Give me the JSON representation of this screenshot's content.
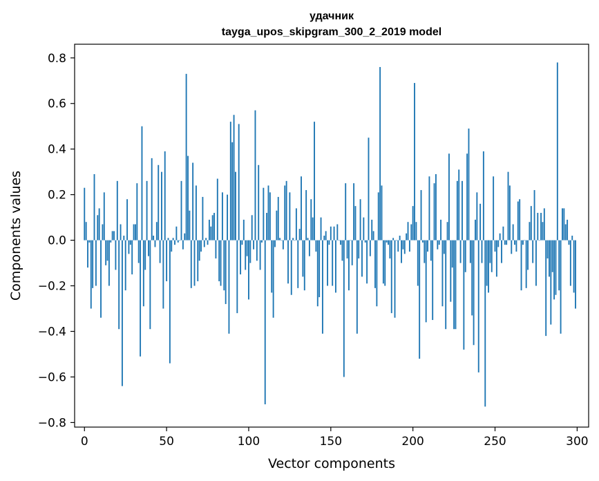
{
  "chart_data": {
    "type": "bar",
    "title": "удачник",
    "subtitle": "tayga_upos_skipgram_300_2_2019 model",
    "xlabel": "Vector components",
    "ylabel": "Components values",
    "xlim": [
      -6,
      307
    ],
    "ylim": [
      -0.82,
      0.86
    ],
    "xticks": [
      0,
      50,
      100,
      150,
      200,
      250,
      300
    ],
    "yticks": [
      -0.8,
      -0.6,
      -0.4,
      -0.2,
      0.0,
      0.2,
      0.4,
      0.6,
      0.8
    ],
    "ytick_labels": [
      "−0.8",
      "−0.6",
      "−0.4",
      "−0.2",
      "0.0",
      "0.2",
      "0.4",
      "0.6",
      "0.8"
    ],
    "xtick_labels": [
      "0",
      "50",
      "100",
      "150",
      "200",
      "250",
      "300"
    ],
    "bar_color": "#1f77b4",
    "grid": false,
    "values": [
      0.23,
      0.08,
      -0.12,
      -0.01,
      -0.3,
      -0.21,
      0.29,
      -0.2,
      0.11,
      0.14,
      -0.34,
      0.07,
      0.21,
      -0.11,
      -0.09,
      -0.2,
      -0.01,
      0.04,
      0.04,
      -0.13,
      0.26,
      -0.39,
      0.07,
      -0.64,
      0.02,
      -0.22,
      0.18,
      -0.06,
      -0.02,
      -0.15,
      0.07,
      0.07,
      0.25,
      -0.1,
      -0.51,
      0.5,
      -0.29,
      -0.13,
      0.26,
      -0.07,
      -0.39,
      0.36,
      0.02,
      -0.03,
      0.08,
      0.33,
      -0.1,
      0.3,
      -0.3,
      0.39,
      -0.18,
      0.01,
      -0.54,
      -0.05,
      0.01,
      -0.02,
      0.06,
      -0.01,
      0.0,
      0.26,
      -0.04,
      0.03,
      0.73,
      0.37,
      0.13,
      -0.21,
      0.34,
      -0.2,
      0.24,
      -0.18,
      -0.09,
      -0.05,
      0.19,
      -0.03,
      0.01,
      -0.02,
      0.09,
      0.06,
      0.11,
      0.12,
      -0.08,
      0.27,
      -0.18,
      -0.2,
      0.21,
      -0.22,
      -0.28,
      0.2,
      -0.41,
      0.52,
      0.43,
      0.55,
      0.3,
      -0.32,
      0.51,
      -0.15,
      -0.02,
      0.09,
      -0.13,
      -0.07,
      -0.26,
      -0.1,
      0.11,
      -0.04,
      0.57,
      -0.09,
      0.33,
      -0.13,
      -0.01,
      0.23,
      -0.72,
      0.12,
      0.24,
      0.21,
      -0.23,
      -0.34,
      -0.03,
      0.13,
      0.19,
      0.01,
      0.0,
      -0.04,
      0.24,
      0.26,
      -0.19,
      0.21,
      -0.24,
      0.01,
      0.0,
      0.14,
      -0.21,
      0.05,
      0.28,
      -0.16,
      -0.22,
      0.22,
      0.01,
      -0.07,
      0.18,
      0.1,
      0.52,
      -0.05,
      -0.29,
      -0.25,
      0.1,
      -0.41,
      0.02,
      0.04,
      -0.2,
      -0.02,
      0.06,
      -0.2,
      0.06,
      -0.23,
      0.07,
      0.0,
      -0.02,
      -0.09,
      -0.6,
      0.25,
      -0.08,
      -0.22,
      0.0,
      -0.11,
      0.25,
      0.15,
      -0.41,
      -0.08,
      0.18,
      -0.16,
      0.1,
      -0.01,
      -0.19,
      0.45,
      -0.07,
      0.09,
      0.04,
      -0.21,
      -0.29,
      0.21,
      0.76,
      0.24,
      -0.19,
      -0.2,
      -0.01,
      -0.02,
      -0.08,
      -0.32,
      0.01,
      -0.34,
      0.0,
      -0.05,
      0.02,
      -0.1,
      -0.04,
      -0.06,
      0.03,
      0.08,
      -0.05,
      0.07,
      0.15,
      0.69,
      0.08,
      -0.2,
      -0.52,
      0.22,
      -0.01,
      -0.1,
      -0.36,
      -0.05,
      0.28,
      -0.09,
      -0.35,
      0.25,
      0.29,
      -0.04,
      -0.02,
      0.09,
      -0.29,
      -0.06,
      -0.39,
      0.08,
      0.38,
      -0.27,
      -0.12,
      -0.39,
      -0.39,
      0.26,
      0.31,
      -0.1,
      0.26,
      -0.48,
      -0.14,
      0.38,
      0.49,
      -0.1,
      -0.33,
      -0.46,
      0.09,
      0.21,
      -0.58,
      0.16,
      -0.1,
      0.39,
      -0.73,
      -0.2,
      -0.23,
      -0.1,
      -0.14,
      0.28,
      -0.05,
      -0.16,
      -0.03,
      0.03,
      -0.1,
      0.06,
      -0.02,
      -0.02,
      0.3,
      0.24,
      -0.06,
      0.07,
      -0.02,
      -0.05,
      0.17,
      0.18,
      -0.22,
      -0.02,
      0.0,
      -0.21,
      -0.13,
      0.08,
      0.15,
      -0.1,
      0.22,
      -0.2,
      0.12,
      0.0,
      0.12,
      0.08,
      0.14,
      -0.42,
      -0.08,
      -0.16,
      -0.37,
      -0.14,
      -0.26,
      -0.24,
      0.78,
      -0.22,
      -0.41,
      0.14,
      0.14,
      0.07,
      0.09,
      -0.02,
      -0.2,
      0.02,
      -0.23,
      -0.3
    ],
    "overlay_values": [
      null,
      null,
      null,
      null,
      null,
      null,
      null,
      null,
      null,
      null,
      null,
      null,
      null,
      null,
      null,
      null,
      null,
      null,
      null,
      null,
      null,
      null,
      null,
      null,
      null,
      null,
      null,
      null,
      null,
      null,
      null,
      null,
      null,
      null,
      null,
      null,
      null,
      null,
      null,
      null,
      null,
      null,
      null,
      null,
      null,
      null,
      null,
      null,
      null,
      null,
      null,
      null,
      null,
      null,
      null,
      null,
      null,
      null,
      null,
      null,
      null,
      null,
      null,
      null,
      null,
      null,
      null,
      null,
      null,
      null,
      null,
      null,
      null,
      null,
      null,
      null,
      null,
      null,
      null,
      null,
      null,
      null,
      null,
      null,
      null,
      null,
      null,
      null,
      null,
      null,
      null,
      null,
      null,
      null,
      null,
      null,
      null,
      null,
      null,
      null,
      null,
      null,
      null,
      null,
      null,
      null,
      null,
      null,
      null,
      null,
      null,
      null,
      null,
      null,
      null,
      null,
      null,
      null,
      null,
      null,
      null,
      null,
      null,
      null,
      null,
      null,
      null,
      null,
      null,
      null,
      null,
      null,
      null,
      null,
      null,
      null,
      null,
      null,
      null,
      null,
      null,
      null,
      null,
      null,
      null,
      null,
      null,
      null,
      null,
      null,
      null,
      null,
      null,
      null,
      null,
      null,
      null,
      null,
      null,
      null,
      null,
      null,
      null,
      null,
      null,
      null,
      null,
      null,
      null,
      null,
      null,
      null,
      null,
      null,
      null,
      null,
      null,
      null,
      null,
      null,
      null,
      null,
      null,
      null,
      null,
      null,
      null,
      null,
      null,
      null,
      null,
      null,
      null,
      null,
      null,
      null,
      null,
      null,
      null,
      null,
      null,
      null,
      null,
      null,
      null,
      null,
      null,
      null,
      null,
      null,
      null,
      null,
      null,
      null,
      null,
      null,
      null,
      null,
      null,
      null,
      null,
      null,
      null,
      null,
      null,
      null,
      null,
      null,
      null,
      null,
      null,
      null,
      null,
      null,
      null,
      null,
      null,
      null,
      null,
      null,
      null,
      null,
      null,
      null,
      null,
      null,
      null,
      null,
      null,
      null,
      null,
      null,
      null,
      null,
      null,
      null,
      null,
      null,
      null,
      null,
      null,
      null,
      null,
      null,
      null,
      null,
      null,
      null,
      null,
      null,
      null,
      null,
      null,
      null,
      null,
      null,
      null,
      null,
      null,
      null,
      null,
      null,
      null,
      null,
      null,
      null,
      null,
      null,
      null,
      null,
      null,
      null,
      null,
      null,
      null,
      null,
      null,
      null,
      null,
      null,
      null,
      null,
      null
    ]
  }
}
